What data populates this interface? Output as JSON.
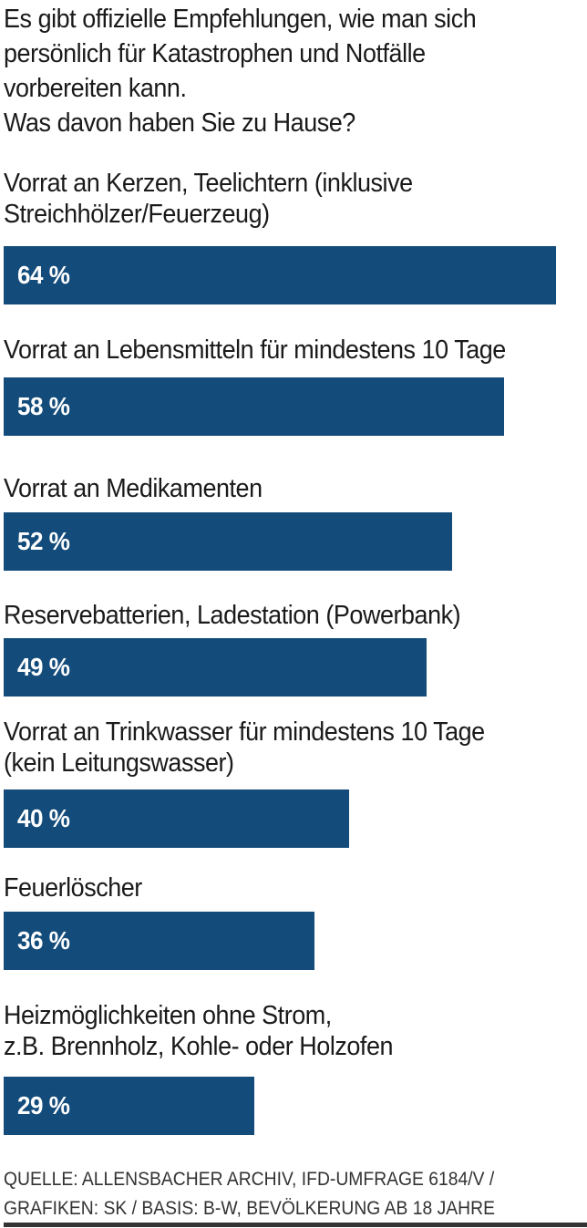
{
  "question": {
    "lines": [
      "Es gibt offizielle Empfehlungen, wie man sich",
      "persönlich für Katastrophen und Notfälle",
      "vorbereiten kann.",
      "Was davon haben Sie zu Hause?"
    ]
  },
  "chart_data": {
    "type": "bar",
    "orientation": "horizontal",
    "categories": [
      "Vorrat an Kerzen, Teelichtern (inklusive Streichhölzer/Feuerzeug)",
      "Vorrat an Lebensmitteln für mindestens 10 Tage",
      "Vorrat an Medikamenten",
      "Reservebatterien, Ladestation (Powerbank)",
      "Vorrat an Trinkwasser für mindestens 10 Tage (kein Leitungswasser)",
      "Feuerlöscher",
      "Heizmöglichkeiten ohne Strom, z.B. Brennholz, Kohle- oder Holzofen"
    ],
    "category_lines": [
      [
        "Vorrat an Kerzen, Teelichtern (inklusive",
        "Streichhölzer/Feuerzeug)"
      ],
      [
        "Vorrat an Lebensmitteln für mindestens 10 Tage"
      ],
      [
        "Vorrat an Medikamenten"
      ],
      [
        "Reservebatterien, Ladestation (Powerbank)"
      ],
      [
        "Vorrat an Trinkwasser für mindestens 10 Tage",
        "(kein Leitungswasser)"
      ],
      [
        "Feuerlöscher"
      ],
      [
        "Heizmöglichkeiten ohne Strom,",
        "z.B. Brennholz, Kohle- oder Holzofen"
      ]
    ],
    "values": [
      64,
      58,
      52,
      49,
      40,
      36,
      29
    ],
    "value_labels": [
      "64 %",
      "58 %",
      "52 %",
      "49 %",
      "40 %",
      "36 %",
      "29 %"
    ],
    "bar_color": "#134b7a",
    "value_label_color": "#ffffff",
    "grid": false
  },
  "source": {
    "lines": [
      "QUELLE: ALLENSBACHER ARCHIV, IFD-UMFRAGE 6184/V /",
      "GRAFIKEN: SK / BASIS: B-W, BEVÖLKERUNG AB 18 JAHRE"
    ]
  }
}
